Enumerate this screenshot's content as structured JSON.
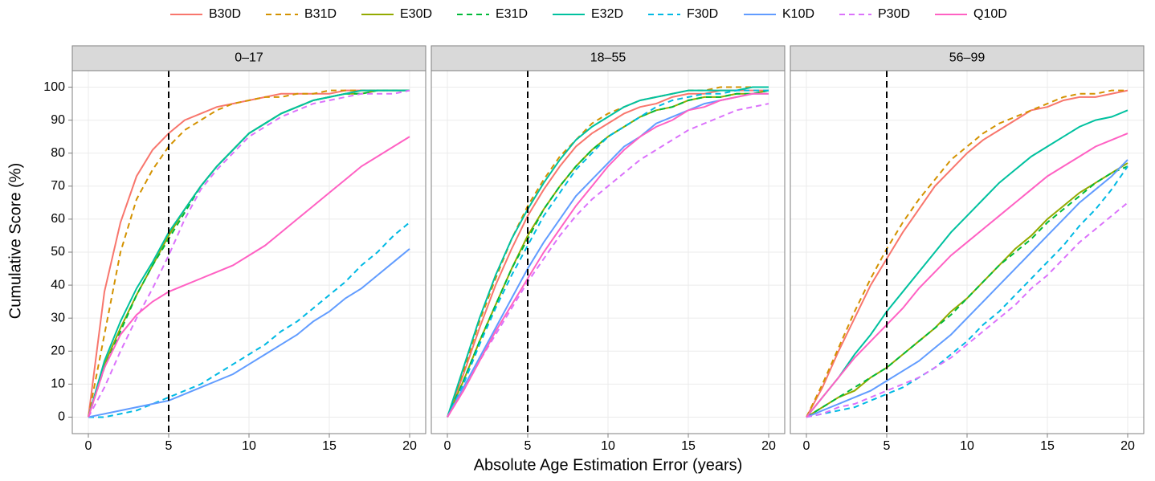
{
  "chart_data": {
    "type": "line",
    "xlabel": "Absolute Age Estimation Error (years)",
    "ylabel": "Cumulative Score (%)",
    "x": [
      0,
      1,
      2,
      3,
      4,
      5,
      6,
      7,
      8,
      9,
      10,
      11,
      12,
      13,
      14,
      15,
      16,
      17,
      18,
      19,
      20
    ],
    "xlim": [
      -1,
      21
    ],
    "xticks": [
      0,
      5,
      10,
      15,
      20
    ],
    "ylim": [
      -5,
      105
    ],
    "yticks": [
      0,
      10,
      20,
      30,
      40,
      50,
      60,
      70,
      80,
      90,
      100
    ],
    "grid": true,
    "vline": 5,
    "legend": "top",
    "series": [
      {
        "name": "B30D",
        "color": "#F8766D",
        "dashed": false
      },
      {
        "name": "B31D",
        "color": "#D39200",
        "dashed": true
      },
      {
        "name": "E30D",
        "color": "#93AA00",
        "dashed": false
      },
      {
        "name": "E31D",
        "color": "#00BA38",
        "dashed": true
      },
      {
        "name": "E32D",
        "color": "#00C19F",
        "dashed": false
      },
      {
        "name": "F30D",
        "color": "#00B9E3",
        "dashed": true
      },
      {
        "name": "K10D",
        "color": "#619CFF",
        "dashed": false
      },
      {
        "name": "P30D",
        "color": "#DB72FB",
        "dashed": true
      },
      {
        "name": "Q10D",
        "color": "#FF61C3",
        "dashed": false
      }
    ],
    "panels": [
      {
        "title": "0–17",
        "values": [
          [
            0,
            38,
            59,
            73,
            81,
            86,
            90,
            92,
            94,
            95,
            96,
            97,
            98,
            98,
            98,
            98,
            99,
            99,
            99,
            99,
            99
          ],
          [
            0,
            25,
            50,
            66,
            75,
            82,
            87,
            90,
            93,
            95,
            96,
            97,
            97,
            98,
            98,
            99,
            99,
            99,
            99,
            99,
            99
          ],
          [
            0,
            16,
            27,
            37,
            46,
            55,
            63,
            70,
            76,
            81,
            86,
            89,
            92,
            94,
            96,
            97,
            98,
            98,
            99,
            99,
            99
          ],
          [
            0,
            15,
            26,
            37,
            46,
            54,
            62,
            70,
            76,
            81,
            86,
            89,
            92,
            94,
            96,
            97,
            98,
            98,
            99,
            99,
            99
          ],
          [
            0,
            17,
            29,
            39,
            47,
            56,
            63,
            70,
            76,
            81,
            86,
            89,
            92,
            94,
            96,
            97,
            98,
            99,
            99,
            99,
            99
          ],
          [
            0,
            0,
            1,
            2,
            4,
            6,
            8,
            10,
            13,
            16,
            19,
            22,
            26,
            29,
            33,
            37,
            41,
            46,
            50,
            55,
            59
          ],
          [
            0,
            1,
            2,
            3,
            4,
            5,
            7,
            9,
            11,
            13,
            16,
            19,
            22,
            25,
            29,
            32,
            36,
            39,
            43,
            47,
            51
          ],
          [
            0,
            9,
            20,
            30,
            39,
            49,
            60,
            69,
            75,
            80,
            85,
            88,
            91,
            93,
            95,
            96,
            97,
            98,
            98,
            98,
            99
          ],
          [
            0,
            15,
            25,
            31,
            35,
            38,
            40,
            42,
            44,
            46,
            49,
            52,
            56,
            60,
            64,
            68,
            72,
            76,
            79,
            82,
            85
          ]
        ]
      },
      {
        "title": "18–55",
        "values": [
          [
            0,
            13,
            27,
            40,
            51,
            61,
            69,
            76,
            82,
            86,
            89,
            92,
            94,
            95,
            97,
            98,
            98,
            99,
            99,
            99,
            99
          ],
          [
            0,
            14,
            29,
            42,
            54,
            64,
            72,
            79,
            84,
            89,
            92,
            94,
            96,
            97,
            98,
            99,
            99,
            100,
            100,
            100,
            100
          ],
          [
            0,
            11,
            23,
            34,
            45,
            55,
            63,
            70,
            76,
            81,
            85,
            88,
            91,
            93,
            94,
            96,
            97,
            97,
            98,
            98,
            99
          ],
          [
            0,
            11,
            23,
            34,
            45,
            54,
            63,
            70,
            76,
            81,
            85,
            88,
            91,
            93,
            94,
            96,
            97,
            97,
            98,
            98,
            99
          ],
          [
            0,
            15,
            30,
            43,
            54,
            63,
            71,
            78,
            84,
            88,
            91,
            94,
            96,
            97,
            98,
            99,
            99,
            99,
            99,
            100,
            100
          ],
          [
            0,
            10,
            22,
            33,
            43,
            52,
            61,
            68,
            75,
            80,
            85,
            88,
            91,
            94,
            96,
            97,
            98,
            98,
            99,
            99,
            99
          ],
          [
            0,
            9,
            18,
            27,
            36,
            45,
            53,
            60,
            67,
            72,
            77,
            82,
            85,
            89,
            91,
            93,
            95,
            96,
            97,
            98,
            98
          ],
          [
            0,
            8,
            17,
            25,
            33,
            41,
            48,
            55,
            61,
            66,
            70,
            74,
            78,
            81,
            84,
            87,
            89,
            91,
            93,
            94,
            95
          ],
          [
            0,
            8,
            17,
            26,
            34,
            42,
            50,
            57,
            64,
            70,
            76,
            81,
            85,
            88,
            90,
            93,
            94,
            96,
            97,
            98,
            98
          ]
        ]
      },
      {
        "title": "56–99",
        "values": [
          [
            0,
            9,
            20,
            30,
            40,
            48,
            56,
            63,
            70,
            75,
            80,
            84,
            87,
            90,
            93,
            94,
            96,
            97,
            97,
            98,
            99
          ],
          [
            0,
            10,
            21,
            32,
            42,
            51,
            59,
            66,
            72,
            78,
            82,
            86,
            89,
            91,
            93,
            95,
            97,
            98,
            98,
            99,
            99
          ],
          [
            0,
            3,
            6,
            8,
            12,
            15,
            19,
            23,
            27,
            32,
            36,
            41,
            46,
            51,
            55,
            60,
            64,
            68,
            71,
            74,
            77
          ],
          [
            0,
            3,
            6,
            9,
            12,
            15,
            19,
            23,
            27,
            31,
            36,
            41,
            46,
            50,
            54,
            59,
            63,
            67,
            71,
            74,
            76
          ],
          [
            0,
            6,
            12,
            19,
            25,
            32,
            38,
            44,
            50,
            56,
            61,
            66,
            71,
            75,
            79,
            82,
            85,
            88,
            90,
            91,
            93
          ],
          [
            0,
            1,
            2,
            3,
            5,
            7,
            9,
            12,
            15,
            19,
            23,
            28,
            32,
            37,
            42,
            47,
            52,
            58,
            63,
            69,
            76
          ],
          [
            0,
            2,
            4,
            6,
            8,
            11,
            14,
            17,
            21,
            25,
            30,
            35,
            40,
            45,
            50,
            55,
            60,
            65,
            69,
            73,
            78
          ],
          [
            0,
            1,
            3,
            4,
            6,
            8,
            10,
            12,
            15,
            18,
            22,
            26,
            30,
            34,
            39,
            43,
            48,
            53,
            57,
            61,
            65
          ],
          [
            0,
            6,
            12,
            18,
            23,
            28,
            33,
            39,
            44,
            49,
            53,
            57,
            61,
            65,
            69,
            73,
            76,
            79,
            82,
            84,
            86
          ]
        ]
      }
    ]
  }
}
